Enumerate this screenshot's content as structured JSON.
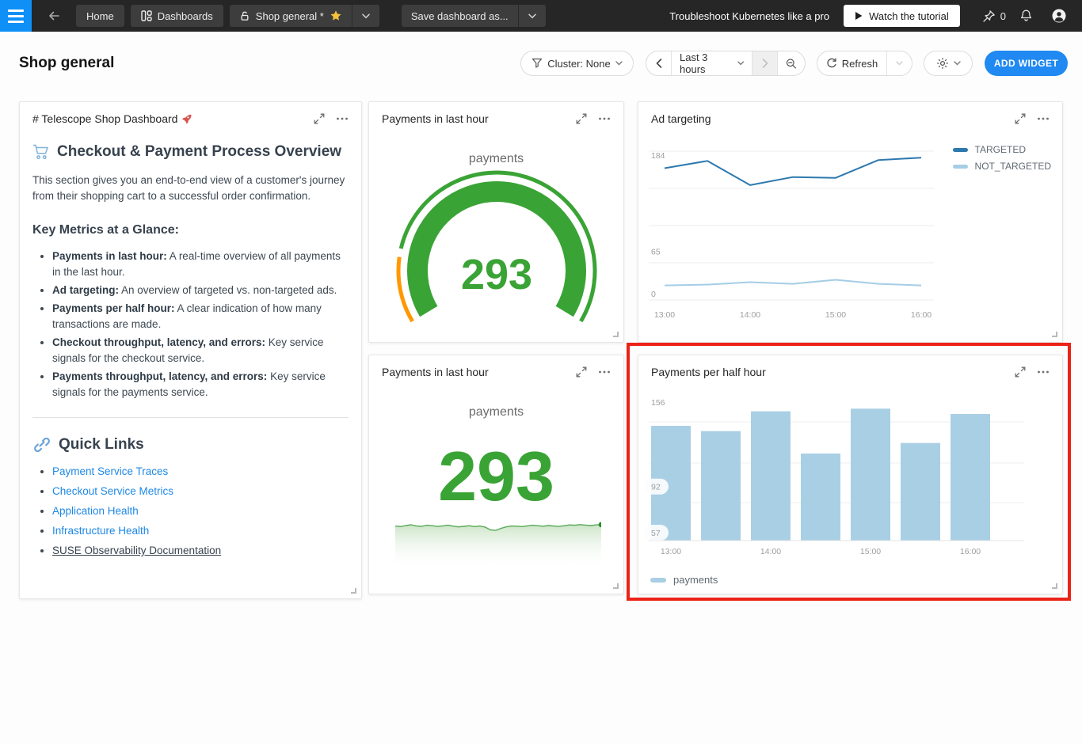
{
  "navbar": {
    "home": "Home",
    "dashboards": "Dashboards",
    "dashboard_name": "Shop general *",
    "save_as": "Save dashboard as...",
    "promo": "Troubleshoot Kubernetes like a pro",
    "watch_tutorial": "Watch the tutorial",
    "pin_count": "0"
  },
  "header": {
    "title": "Shop general",
    "cluster_label": "Cluster: None",
    "time_range": "Last 3 hours",
    "refresh": "Refresh",
    "add_widget": "ADD WIDGET"
  },
  "markdown_widget": {
    "title": "# Telescope Shop Dashboard",
    "heading": "Checkout & Payment Process Overview",
    "intro": "This section gives you an end-to-end view of a customer's journey from their shopping cart to a successful order confirmation.",
    "metrics_heading": "Key Metrics at a Glance:",
    "bullets": [
      {
        "bold": "Payments in last hour:",
        "text": " A real-time overview of all payments in the last hour."
      },
      {
        "bold": "Ad targeting:",
        "text": " An overview of targeted vs. non-targeted ads."
      },
      {
        "bold": "Payments per half hour:",
        "text": " A clear indication of how many transactions are made."
      },
      {
        "bold": "Checkout throughput, latency, and errors:",
        "text": " Key service signals for the checkout service."
      },
      {
        "bold": "Payments throughput, latency, and errors:",
        "text": " Key service signals for the payments service."
      }
    ],
    "links_heading": "Quick Links",
    "links": [
      "Payment Service Traces",
      "Checkout Service Metrics",
      "Application Health",
      "Infrastructure Health"
    ],
    "doc_link": "SUSE Observability Documentation"
  },
  "chart_data": [
    {
      "id": "ad-targeting",
      "type": "line",
      "title": "Ad targeting",
      "x": [
        "13:00",
        "13:30",
        "14:00",
        "14:30",
        "15:00",
        "15:30",
        "16:00"
      ],
      "series": [
        {
          "name": "NOT_TARGETED",
          "color": "#a5cde6",
          "values": [
            18,
            19,
            22,
            20,
            25,
            20,
            18
          ]
        },
        {
          "name": "TARGETED",
          "color": "#2d79ae",
          "values": [
            163,
            172,
            142,
            152,
            151,
            173,
            176
          ]
        }
      ],
      "ylim": [
        0,
        184
      ],
      "yticks": [
        184,
        65,
        0
      ],
      "xticks": [
        "13:00",
        "14:00",
        "15:00",
        "16:00"
      ],
      "grid": true,
      "legend_position": "right"
    },
    {
      "id": "payments-per-half-hour",
      "type": "bar",
      "title": "Payments per half hour",
      "categories": [
        "13:00",
        "13:30",
        "14:00",
        "14:30",
        "15:00",
        "15:30",
        "16:00"
      ],
      "values": [
        138,
        134,
        149,
        117,
        151,
        125,
        147
      ],
      "series_name": "payments",
      "color": "#a9cfe5",
      "ylim": [
        51,
        156
      ],
      "yticks": [
        156,
        92,
        57
      ],
      "xticks": [
        "13:00",
        "14:00",
        "15:00",
        "16:00"
      ],
      "grid": true,
      "legend_position": "bottom"
    },
    {
      "id": "payments-gauge",
      "type": "gauge",
      "title": "Payments in last hour",
      "metric": "payments",
      "value": 293,
      "value_color": "#3aa335",
      "scale_low_color": "#ff9800"
    },
    {
      "id": "payments-number",
      "type": "area",
      "title": "Payments in last hour",
      "metric": "payments",
      "value": 293,
      "value_color": "#3aa335",
      "line_color": "#58a958",
      "ylim": [
        0,
        300
      ],
      "values": [
        284,
        280,
        287,
        292,
        285,
        282,
        289,
        286,
        281,
        285,
        290,
        283,
        278,
        282,
        286,
        280,
        284,
        277,
        259,
        255,
        268,
        278,
        284,
        283,
        280,
        285,
        289,
        286,
        283,
        287,
        284,
        281,
        286,
        291,
        289,
        293,
        290,
        287,
        291,
        293
      ]
    }
  ]
}
